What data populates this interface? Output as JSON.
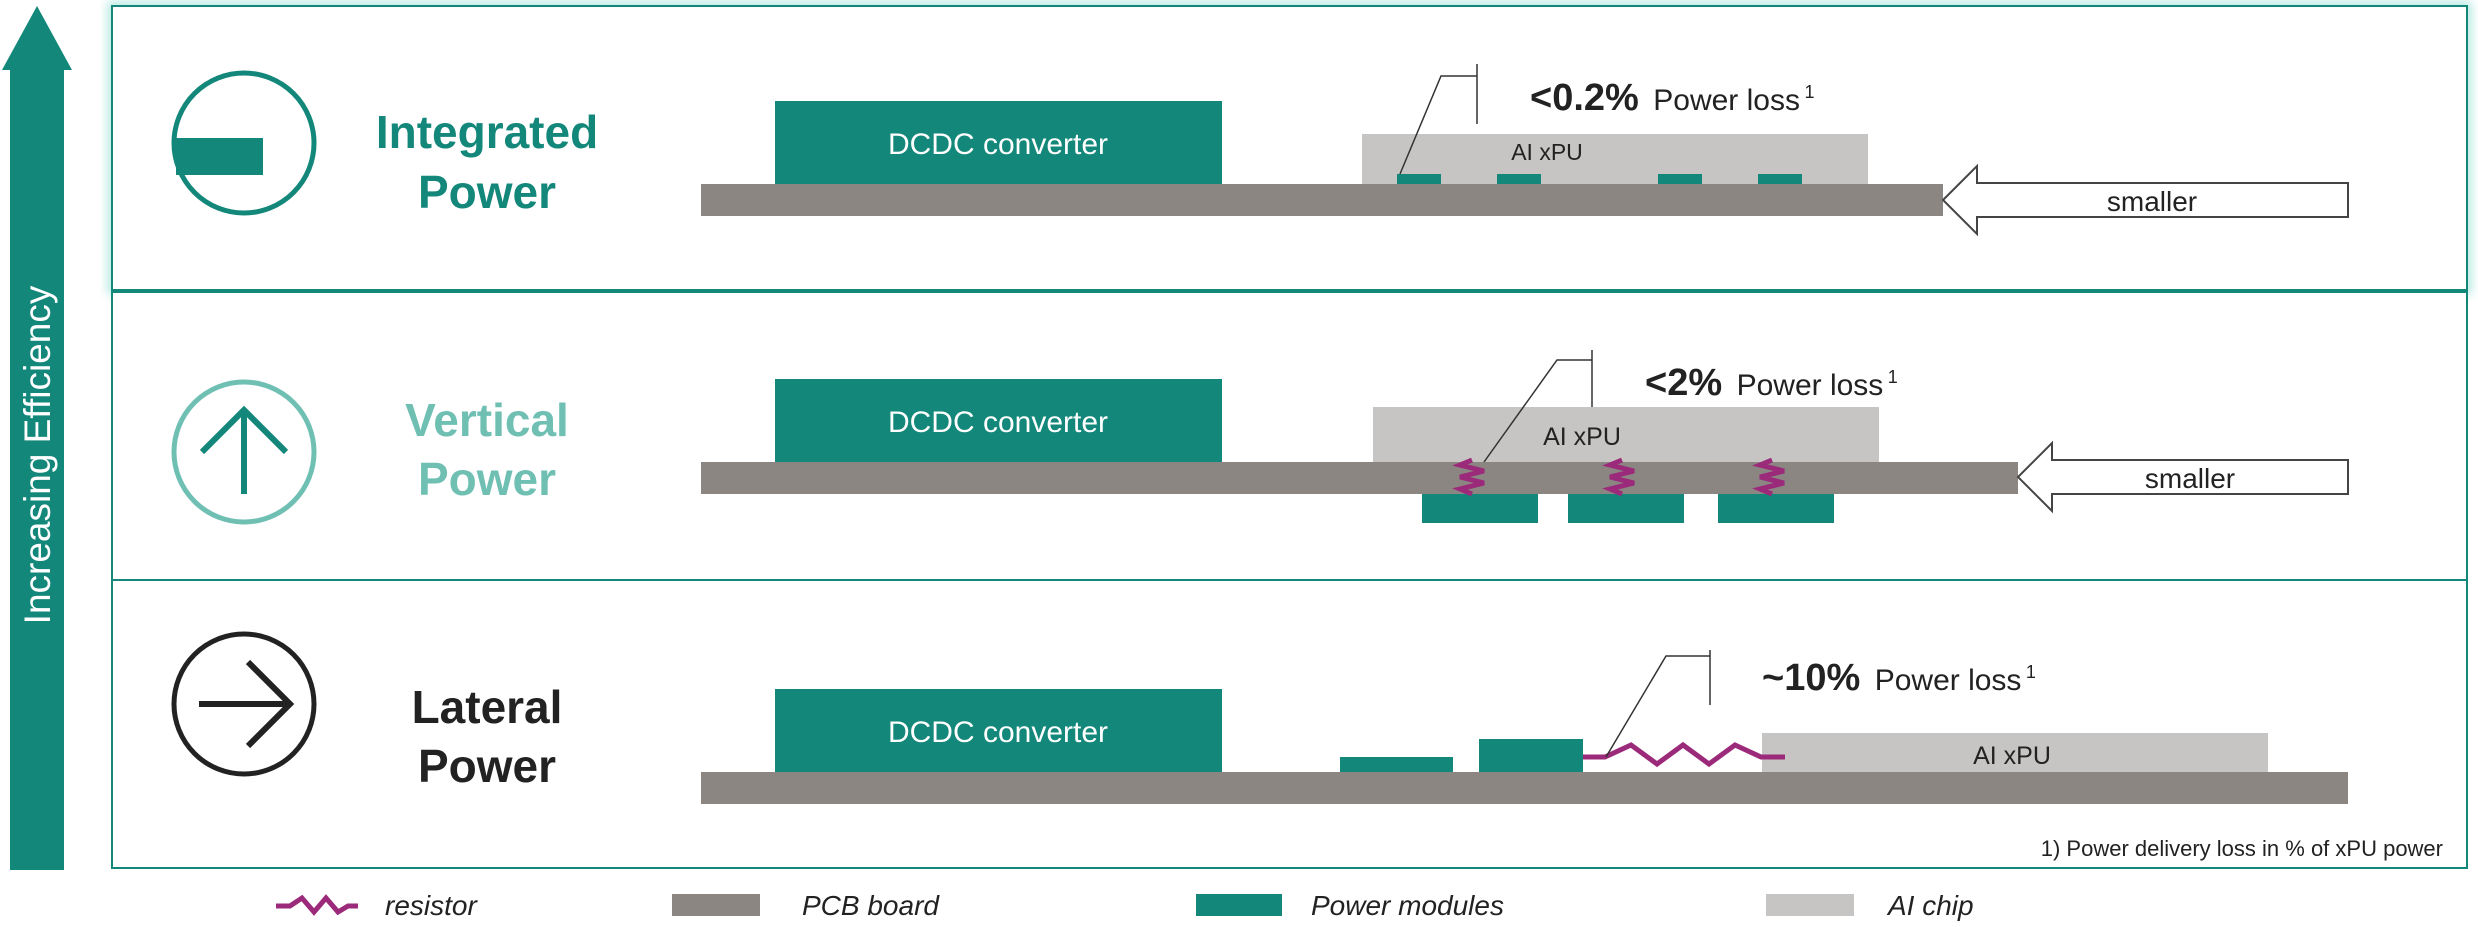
{
  "colors": {
    "teal": "#12877A",
    "teal_light": "#6FBFB3",
    "pcb": "#8C8683",
    "chip": "#C6C5C3",
    "resistor": "#9C2A7A",
    "dark": "#222222"
  },
  "axis": {
    "label": "Increasing Efficiency"
  },
  "rows": [
    {
      "id": "integrated",
      "icon": "bar-icon",
      "title_line1": "Integrated",
      "title_line2": "Power",
      "converter_label": "DCDC converter",
      "chip_label": "AI xPU",
      "loss_value": "<0.2%",
      "loss_text": "Power loss",
      "loss_sup": "1",
      "arrow_label": "smaller"
    },
    {
      "id": "vertical",
      "icon": "arrow-up-icon",
      "title_line1": "Vertical",
      "title_line2": "Power",
      "converter_label": "DCDC converter",
      "chip_label": "AI xPU",
      "loss_value": "<2%",
      "loss_text": "Power loss",
      "loss_sup": "1",
      "arrow_label": "smaller"
    },
    {
      "id": "lateral",
      "icon": "arrow-right-icon",
      "title_line1": "Lateral",
      "title_line2": "Power",
      "converter_label": "DCDC converter",
      "chip_label": "AI xPU",
      "loss_value": "~10%",
      "loss_text": "Power loss",
      "loss_sup": "1"
    }
  ],
  "footnote": "1) Power delivery loss in % of xPU power",
  "legend": [
    {
      "id": "resistor",
      "label": "resistor"
    },
    {
      "id": "pcb",
      "label": "PCB board"
    },
    {
      "id": "modules",
      "label": "Power modules"
    },
    {
      "id": "chip",
      "label": "AI chip"
    }
  ]
}
